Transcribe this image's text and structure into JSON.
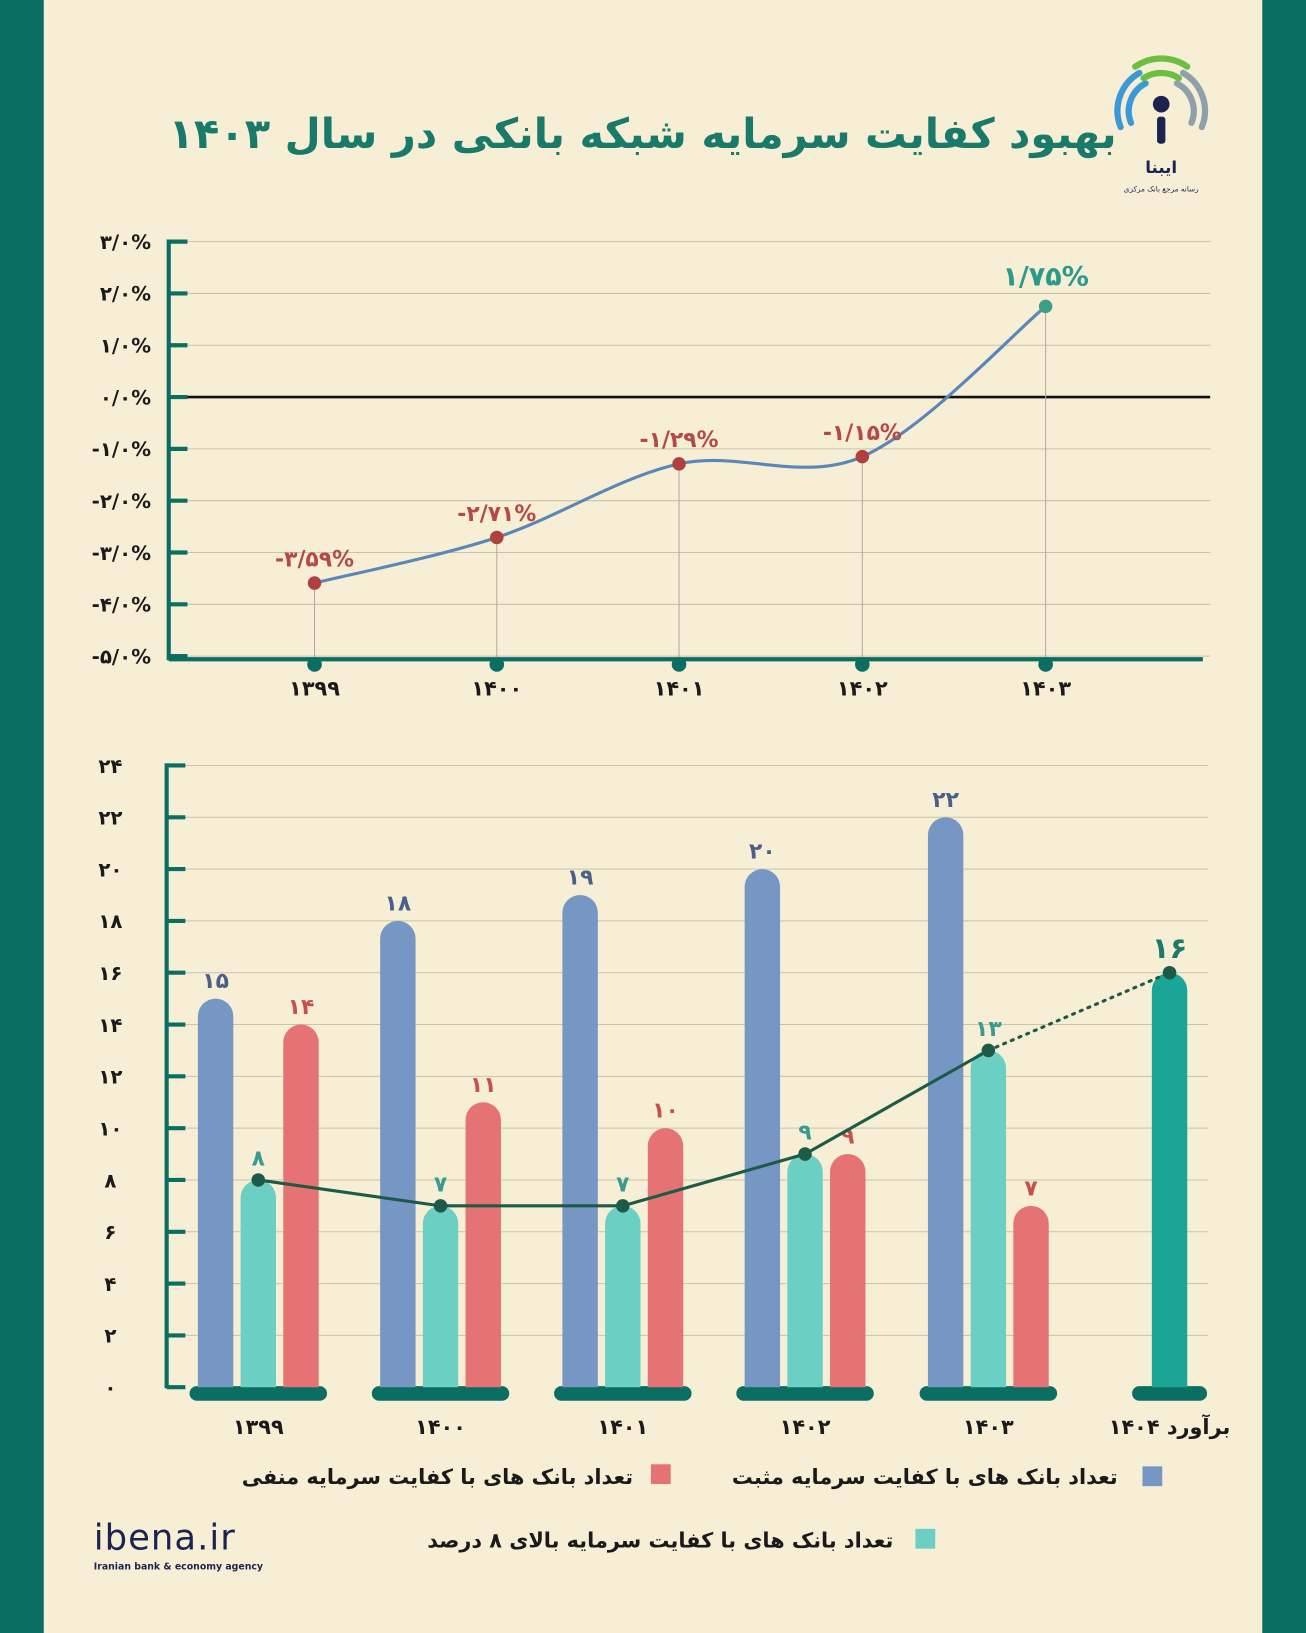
{
  "title": "بهبود کفایت سرمایه شبکه بانکی در سال ۱۴۰۳",
  "logo": {
    "name": "ایبنا",
    "subtitle": "رسانه مرجع بانک مرکزی"
  },
  "footer": {
    "brand": "ibena.ir",
    "tagline": "Iranian bank & economy agency"
  },
  "colors": {
    "frame": "#0b6e63",
    "background": "#f6efd6",
    "title": "#1a7a6a",
    "positive": "#7697c4",
    "negative": "#e57373",
    "above8": "#6ccfc4",
    "estimate": "#1aa596",
    "line1": "#5b86b8",
    "line2": "#1e5a48"
  },
  "chart_data": [
    {
      "type": "line",
      "title": "بهبود کفایت سرمایه شبکه بانکی در سال ۱۴۰۳",
      "categories": [
        "۱۳۹۹",
        "۱۴۰۰",
        "۱۴۰۱",
        "۱۴۰۲",
        "۱۴۰۳"
      ],
      "values": [
        -3.59,
        -2.71,
        -1.29,
        -1.15,
        1.75
      ],
      "labels": [
        "-۳/۵۹%",
        "-۲/۷۱%",
        "-۱/۲۹%",
        "-۱/۱۵%",
        "۱/۷۵%"
      ],
      "ylim": [
        -5,
        3
      ],
      "yticks": [
        3,
        2,
        1,
        0,
        -1,
        -2,
        -3,
        -4,
        -5
      ],
      "ytick_labels": [
        "۳/۰%",
        "۲/۰%",
        "۱/۰%",
        "۰/۰%",
        "-۱/۰%",
        "-۲/۰%",
        "-۳/۰%",
        "-۴/۰%",
        "-۵/۰%"
      ],
      "grid": true
    },
    {
      "type": "bar",
      "categories": [
        "۱۳۹۹",
        "۱۴۰۰",
        "۱۴۰۱",
        "۱۴۰۲",
        "۱۴۰۳",
        "برآورد ۱۴۰۴"
      ],
      "series": [
        {
          "name": "تعداد بانک های با کفایت سرمایه مثبت",
          "values": [
            15,
            18,
            19,
            20,
            22,
            null
          ],
          "labels": [
            "۱۵",
            "۱۸",
            "۱۹",
            "۲۰",
            "۲۲",
            null
          ]
        },
        {
          "name": "تعداد بانک های با کفایت سرمایه بالای ۸ درصد",
          "values": [
            8,
            7,
            7,
            9,
            13,
            16
          ],
          "labels": [
            "۸",
            "۷",
            "۷",
            "۹",
            "۱۳",
            "۱۶"
          ]
        },
        {
          "name": "تعداد بانک های با کفایت سرمایه منفی",
          "values": [
            14,
            11,
            10,
            9,
            7,
            null
          ],
          "labels": [
            "۱۴",
            "۱۱",
            "۱۰",
            "۹",
            "۷",
            null
          ]
        }
      ],
      "ylim": [
        0,
        24
      ],
      "yticks": [
        0,
        2,
        4,
        6,
        8,
        10,
        12,
        14,
        16,
        18,
        20,
        22,
        24
      ],
      "ytick_labels": [
        "۰",
        "۲",
        "۴",
        "۶",
        "۸",
        "۱۰",
        "۱۲",
        "۱۴",
        "۱۶",
        "۱۸",
        "۲۰",
        "۲۲",
        "۲۴"
      ],
      "grid": true,
      "legend_position": "bottom"
    }
  ]
}
